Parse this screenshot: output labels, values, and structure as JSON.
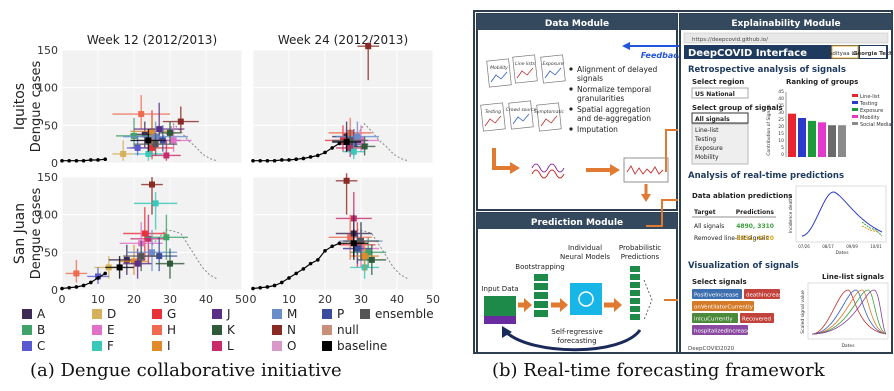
{
  "captions": {
    "left": "(a) Dengue collaborative initiative",
    "right": "(b) Real-time forecasting framework"
  },
  "chart_data": {
    "type": "scatter",
    "panel_titles": [
      "Week 12 (2012/2013)",
      "Week 24 (2012/2013)"
    ],
    "row_labels": [
      "Iquitos",
      "San Juan"
    ],
    "ylabel": "Dengue cases",
    "xlim": [
      0,
      50
    ],
    "ylim": [
      0,
      150
    ],
    "x_ticks": [
      0,
      10,
      20,
      30,
      40,
      50
    ],
    "y_ticks": [
      0,
      50,
      100,
      150
    ],
    "grid": true,
    "legend_position": "bottom",
    "legend": [
      {
        "code": "A",
        "color": "#3d2b55"
      },
      {
        "code": "D",
        "color": "#d4b15a"
      },
      {
        "code": "G",
        "color": "#e8323a"
      },
      {
        "code": "J",
        "color": "#5a2d86"
      },
      {
        "code": "M",
        "color": "#6a8fc8"
      },
      {
        "code": "P",
        "color": "#3a4c9c"
      },
      {
        "code": "ensemble",
        "color": "#555555"
      },
      {
        "code": "B",
        "color": "#3fa36a"
      },
      {
        "code": "E",
        "color": "#e070c8"
      },
      {
        "code": "H",
        "color": "#f06a52"
      },
      {
        "code": "K",
        "color": "#2e5a3a"
      },
      {
        "code": "N",
        "color": "#8a2a24"
      },
      {
        "code": "null",
        "color": "#c8907a"
      },
      {
        "code": "C",
        "color": "#5a5ad0"
      },
      {
        "code": "F",
        "color": "#3ac8b8"
      },
      {
        "code": "I",
        "color": "#e08a2a"
      },
      {
        "code": "L",
        "color": "#c82a6a"
      },
      {
        "code": "O",
        "color": "#d898c8"
      },
      {
        "code": "baseline",
        "color": "#000000"
      }
    ],
    "observed_series": {
      "iquitos_w12": {
        "x": [
          0,
          2,
          4,
          6,
          8,
          10,
          12
        ],
        "y": [
          3,
          3,
          3,
          3,
          4,
          4,
          5
        ]
      },
      "iquitos_w24": {
        "x": [
          0,
          2,
          4,
          6,
          8,
          10,
          12,
          14,
          16,
          18,
          20,
          22,
          24
        ],
        "y": [
          3,
          3,
          3,
          3,
          4,
          4,
          5,
          6,
          8,
          10,
          14,
          20,
          26
        ]
      },
      "sanjuan_w12": {
        "x": [
          0,
          2,
          4,
          6,
          8,
          10,
          12
        ],
        "y": [
          2,
          3,
          4,
          6,
          10,
          16,
          22
        ]
      },
      "sanjuan_w24": {
        "x": [
          0,
          2,
          4,
          6,
          8,
          10,
          12,
          14,
          16,
          18,
          20,
          22,
          24
        ],
        "y": [
          2,
          3,
          4,
          6,
          10,
          16,
          22,
          28,
          35,
          40,
          52,
          58,
          62
        ]
      }
    },
    "future_truth": {
      "iquitos": {
        "x": [
          25,
          27,
          29,
          31,
          33,
          35,
          37,
          39,
          41,
          43
        ],
        "y": [
          28,
          32,
          38,
          52,
          42,
          30,
          22,
          12,
          6,
          3
        ]
      },
      "sanjuan": {
        "x": [
          25,
          27,
          29,
          31,
          33,
          35,
          37,
          39,
          41,
          43
        ],
        "y": [
          60,
          70,
          80,
          78,
          75,
          60,
          45,
          30,
          20,
          15
        ]
      }
    },
    "predictions": {
      "iquitos_w12": [
        {
          "model": "A",
          "x": 23,
          "y": 38,
          "xerr": 4,
          "ylo": 20,
          "yhi": 55
        },
        {
          "model": "B",
          "x": 20,
          "y": 36,
          "xerr": 5,
          "ylo": 20,
          "yhi": 60
        },
        {
          "model": "D",
          "x": 17,
          "y": 12,
          "xerr": 3,
          "ylo": 3,
          "yhi": 30
        },
        {
          "model": "G",
          "x": 25,
          "y": 20,
          "xerr": 6,
          "ylo": 5,
          "yhi": 70
        },
        {
          "model": "H",
          "x": 22,
          "y": 65,
          "xerr": 8,
          "ylo": 45,
          "yhi": 90
        },
        {
          "model": "I",
          "x": 25,
          "y": 42,
          "xerr": 6,
          "ylo": 25,
          "yhi": 60
        },
        {
          "model": "J",
          "x": 27,
          "y": 45,
          "xerr": 7,
          "ylo": 30,
          "yhi": 80
        },
        {
          "model": "M",
          "x": 26,
          "y": 35,
          "xerr": 9,
          "ylo": 20,
          "yhi": 55
        },
        {
          "model": "P",
          "x": 28,
          "y": 30,
          "xerr": 5,
          "ylo": 15,
          "yhi": 50
        },
        {
          "model": "N",
          "x": 33,
          "y": 55,
          "xerr": 5,
          "ylo": 40,
          "yhi": 75
        },
        {
          "model": "L",
          "x": 29,
          "y": 10,
          "xerr": 4,
          "ylo": 3,
          "yhi": 30
        },
        {
          "model": "F",
          "x": 24,
          "y": 12,
          "xerr": 4,
          "ylo": 3,
          "yhi": 25
        },
        {
          "model": "E",
          "x": 31,
          "y": 30,
          "xerr": 5,
          "ylo": 15,
          "yhi": 50
        },
        {
          "model": "K",
          "x": 30,
          "y": 40,
          "xerr": 3,
          "ylo": 25,
          "yhi": 55
        },
        {
          "model": "C",
          "x": 21,
          "y": 20,
          "xerr": 3,
          "ylo": 10,
          "yhi": 35
        },
        {
          "model": "ensemble",
          "x": 26,
          "y": 25,
          "xerr": 6,
          "ylo": 10,
          "yhi": 40
        },
        {
          "model": "baseline",
          "x": 24,
          "y": 30,
          "xerr": 5,
          "ylo": 15,
          "yhi": 45
        }
      ],
      "iquitos_w24": [
        {
          "model": "N",
          "x": 32,
          "y": 155,
          "xerr": 3,
          "ylo": 110,
          "yhi": 160
        },
        {
          "model": "A",
          "x": 26,
          "y": 35,
          "xerr": 4,
          "ylo": 20,
          "yhi": 55
        },
        {
          "model": "G",
          "x": 25,
          "y": 30,
          "xerr": 5,
          "ylo": 15,
          "yhi": 50
        },
        {
          "model": "H",
          "x": 27,
          "y": 40,
          "xerr": 6,
          "ylo": 20,
          "yhi": 60
        },
        {
          "model": "J",
          "x": 28,
          "y": 25,
          "xerr": 4,
          "ylo": 10,
          "yhi": 45
        },
        {
          "model": "E",
          "x": 30,
          "y": 30,
          "xerr": 5,
          "ylo": 15,
          "yhi": 50
        },
        {
          "model": "L",
          "x": 27,
          "y": 20,
          "xerr": 4,
          "ylo": 8,
          "yhi": 35
        },
        {
          "model": "M",
          "x": 29,
          "y": 35,
          "xerr": 6,
          "ylo": 20,
          "yhi": 55
        },
        {
          "model": "F",
          "x": 28,
          "y": 15,
          "xerr": 3,
          "ylo": 5,
          "yhi": 30
        },
        {
          "model": "P",
          "x": 26,
          "y": 28,
          "xerr": 4,
          "ylo": 15,
          "yhi": 45
        },
        {
          "model": "K",
          "x": 31,
          "y": 22,
          "xerr": 3,
          "ylo": 10,
          "yhi": 35
        },
        {
          "model": "ensemble",
          "x": 27,
          "y": 30,
          "xerr": 5,
          "ylo": 15,
          "yhi": 45
        },
        {
          "model": "baseline",
          "x": 26,
          "y": 28,
          "xerr": 4,
          "ylo": 15,
          "yhi": 40
        }
      ],
      "sanjuan_w12": [
        {
          "model": "N",
          "x": 25,
          "y": 140,
          "xerr": 3,
          "ylo": 100,
          "yhi": 150
        },
        {
          "model": "G",
          "x": 23,
          "y": 75,
          "xerr": 6,
          "ylo": 40,
          "yhi": 110
        },
        {
          "model": "L",
          "x": 24,
          "y": 68,
          "xerr": 5,
          "ylo": 35,
          "yhi": 100
        },
        {
          "model": "E",
          "x": 22,
          "y": 62,
          "xerr": 6,
          "ylo": 30,
          "yhi": 90
        },
        {
          "model": "F",
          "x": 26,
          "y": 115,
          "xerr": 6,
          "ylo": 80,
          "yhi": 130
        },
        {
          "model": "B",
          "x": 29,
          "y": 70,
          "xerr": 6,
          "ylo": 40,
          "yhi": 100
        },
        {
          "model": "H",
          "x": 4,
          "y": 22,
          "xerr": 3,
          "ylo": 10,
          "yhi": 40
        },
        {
          "model": "D",
          "x": 13,
          "y": 30,
          "xerr": 4,
          "ylo": 15,
          "yhi": 45
        },
        {
          "model": "C",
          "x": 10,
          "y": 18,
          "xerr": 3,
          "ylo": 8,
          "yhi": 30
        },
        {
          "model": "A",
          "x": 18,
          "y": 40,
          "xerr": 5,
          "ylo": 20,
          "yhi": 60
        },
        {
          "model": "I",
          "x": 20,
          "y": 38,
          "xerr": 4,
          "ylo": 20,
          "yhi": 60
        },
        {
          "model": "J",
          "x": 21,
          "y": 35,
          "xerr": 4,
          "ylo": 15,
          "yhi": 55
        },
        {
          "model": "M",
          "x": 25,
          "y": 50,
          "xerr": 7,
          "ylo": 25,
          "yhi": 80
        },
        {
          "model": "P",
          "x": 27,
          "y": 45,
          "xerr": 5,
          "ylo": 25,
          "yhi": 70
        },
        {
          "model": "K",
          "x": 30,
          "y": 35,
          "xerr": 4,
          "ylo": 15,
          "yhi": 55
        },
        {
          "model": "ensemble",
          "x": 22,
          "y": 45,
          "xerr": 5,
          "ylo": 25,
          "yhi": 65
        },
        {
          "model": "baseline",
          "x": 16,
          "y": 30,
          "xerr": 4,
          "ylo": 15,
          "yhi": 45
        }
      ],
      "sanjuan_w24": [
        {
          "model": "N",
          "x": 26,
          "y": 145,
          "xerr": 3,
          "ylo": 100,
          "yhi": 155
        },
        {
          "model": "L",
          "x": 28,
          "y": 95,
          "xerr": 5,
          "ylo": 60,
          "yhi": 130
        },
        {
          "model": "G",
          "x": 29,
          "y": 60,
          "xerr": 5,
          "ylo": 30,
          "yhi": 90
        },
        {
          "model": "E",
          "x": 30,
          "y": 55,
          "xerr": 5,
          "ylo": 30,
          "yhi": 80
        },
        {
          "model": "F",
          "x": 31,
          "y": 30,
          "xerr": 4,
          "ylo": 15,
          "yhi": 45
        },
        {
          "model": "B",
          "x": 32,
          "y": 50,
          "xerr": 5,
          "ylo": 30,
          "yhi": 70
        },
        {
          "model": "H",
          "x": 27,
          "y": 70,
          "xerr": 6,
          "ylo": 40,
          "yhi": 100
        },
        {
          "model": "A",
          "x": 28,
          "y": 75,
          "xerr": 5,
          "ylo": 45,
          "yhi": 100
        },
        {
          "model": "M",
          "x": 30,
          "y": 65,
          "xerr": 6,
          "ylo": 40,
          "yhi": 90
        },
        {
          "model": "P",
          "x": 29,
          "y": 55,
          "xerr": 4,
          "ylo": 35,
          "yhi": 75
        },
        {
          "model": "K",
          "x": 33,
          "y": 40,
          "xerr": 4,
          "ylo": 20,
          "yhi": 60
        },
        {
          "model": "I",
          "x": 31,
          "y": 45,
          "xerr": 4,
          "ylo": 25,
          "yhi": 65
        },
        {
          "model": "ensemble",
          "x": 30,
          "y": 65,
          "xerr": 5,
          "ylo": 40,
          "yhi": 90
        },
        {
          "model": "baseline",
          "x": 28,
          "y": 62,
          "xerr": 4,
          "ylo": 40,
          "yhi": 80
        }
      ]
    }
  },
  "framework": {
    "data_module": {
      "title": "Data Module",
      "feedback": "Feedback",
      "icons": [
        "Mobility",
        "Line lists",
        "Exposure",
        "Testing",
        "Crowd source",
        "Symptomatic"
      ],
      "bullets": [
        "Alignment of delayed signals",
        "Normalize temporal granularities",
        "Spatial aggregation and de-aggregation",
        "Imputation"
      ]
    },
    "prediction_module": {
      "title": "Prediction Module",
      "labels": [
        "Input Data",
        "Bootstrapping",
        "Individual Neural Models",
        "Probabilistic Predictions"
      ],
      "loop_label": "Self-regressive forecasting"
    },
    "explainability_module": {
      "title": "Explainability Module",
      "url": "https://deepcovid.github.io/",
      "app_title": "DeepCOVID Interface",
      "logo1": "Adityaa Lab",
      "logo2": "Georgia Tech",
      "retro_heading": "Retrospective analysis of signals",
      "select_region": "Select region",
      "region_value": "US National",
      "select_group": "Select group of signals",
      "group_value": "All signals",
      "group_options": [
        "Line-list",
        "Testing",
        "Exposure",
        "Mobility"
      ],
      "ranking_heading": "Ranking of groups",
      "ranking_ylabel": "Contribution of Signals",
      "ranking_ticks": [
        "45",
        "40",
        "35",
        "30",
        "25",
        "20",
        "15",
        "10",
        "5",
        "0"
      ],
      "ranking_legend": [
        {
          "name": "Line-list",
          "color": "#e8252e"
        },
        {
          "name": "Testing",
          "color": "#2a3acb"
        },
        {
          "name": "Exposure",
          "color": "#1d9a3a"
        },
        {
          "name": "Mobility",
          "color": "#e43acb"
        },
        {
          "name": "Social Media",
          "color": "#8a8a8a"
        }
      ],
      "ranking_values": [
        30,
        27,
        25,
        24,
        22,
        22
      ],
      "ranking_colors": [
        "#e8252e",
        "#2a3acb",
        "#1d9a3a",
        "#e43acb",
        "#6a6a6a",
        "#8a8a8a"
      ],
      "realtime_heading": "Analysis of real-time predictions",
      "ablation_heading": "Data ablation predictions",
      "table_headers": [
        "Target",
        "Predictions"
      ],
      "table_rows": [
        {
          "target": "All signals",
          "pred": "4890, 3310"
        },
        {
          "target": "Removed line-list signals",
          "pred": "5551, 4720"
        }
      ],
      "mini_ylabel": "Incidence deaths",
      "mini_xlabel": "Dates",
      "mini_xticks": [
        "07/26",
        "08/17",
        "09/09",
        "10/01"
      ],
      "vis_heading": "Visualization of signals",
      "select_signals": "Select signals",
      "signal_chips": [
        {
          "label": "PositiveIncrease",
          "color": "#3d6fae"
        },
        {
          "label": "deathIncrease",
          "color": "#c1433c"
        },
        {
          "label": "onVentilatorCurrently",
          "color": "#d47b2a"
        },
        {
          "label": "inIcuCurrently",
          "color": "#4a8a3a"
        },
        {
          "label": "Recovered",
          "color": "#c1433c"
        },
        {
          "label": "hospitalizedIncrease",
          "color": "#8a4aa0"
        }
      ],
      "lineplot_heading": "Line-list signals",
      "lineplot_ylabel": "Scaled signal value",
      "lineplot_xlabel": "Dates",
      "footer": "DeepCOVID2020"
    }
  }
}
